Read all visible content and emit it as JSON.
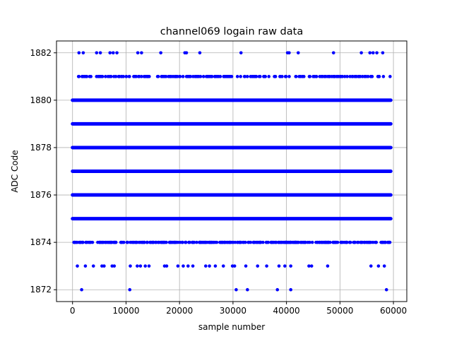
{
  "chart_data": {
    "type": "scatter",
    "title": "channel069 logain raw data",
    "xlabel": "sample number",
    "ylabel": "ADC Code",
    "xlim": [
      -3000,
      62500
    ],
    "ylim": [
      1871.5,
      1882.5
    ],
    "xticks": [
      0,
      10000,
      20000,
      30000,
      40000,
      50000,
      60000
    ],
    "yticks": [
      1872,
      1874,
      1876,
      1878,
      1880,
      1882
    ],
    "grid": true,
    "marker_color": "#0000ff",
    "series": [
      {
        "dense_bands": [
          {
            "y": 1875,
            "x_range": [
              0,
              59500
            ]
          },
          {
            "y": 1876,
            "x_range": [
              0,
              59500
            ]
          },
          {
            "y": 1877,
            "x_range": [
              0,
              59500
            ]
          },
          {
            "y": 1878,
            "x_range": [
              0,
              59500
            ]
          },
          {
            "y": 1879,
            "x_range": [
              0,
              59500
            ]
          },
          {
            "y": 1880,
            "x_range": [
              0,
              59500
            ]
          }
        ],
        "medium_bands": [
          {
            "y": 1874,
            "x_range": [
              0,
              59500
            ]
          },
          {
            "y": 1881,
            "x_range": [
              800,
              59500
            ]
          }
        ],
        "sparse_points": [
          {
            "y": 1882,
            "x": [
              1200,
              2000,
              4500,
              5200,
              7000,
              7600,
              8300,
              12200,
              12900,
              16500,
              21000,
              21300,
              23800,
              31500,
              40200,
              40500,
              42200,
              48800,
              54000,
              55600,
              56200,
              56900,
              58000
            ]
          },
          {
            "y": 1873,
            "x": [
              900,
              2400,
              3900,
              5500,
              5900,
              7400,
              7800,
              10800,
              12100,
              12700,
              13600,
              14300,
              17200,
              17600,
              19700,
              20700,
              21600,
              22500,
              24900,
              25600,
              26700,
              28200,
              29900,
              30300,
              32400,
              34600,
              36300,
              38600,
              39700,
              40800,
              44200,
              44700,
              47700,
              55800,
              57200,
              58300
            ]
          },
          {
            "y": 1872,
            "x": [
              1700,
              10700,
              30600,
              32700,
              38300,
              40800,
              58700
            ]
          }
        ]
      }
    ]
  }
}
